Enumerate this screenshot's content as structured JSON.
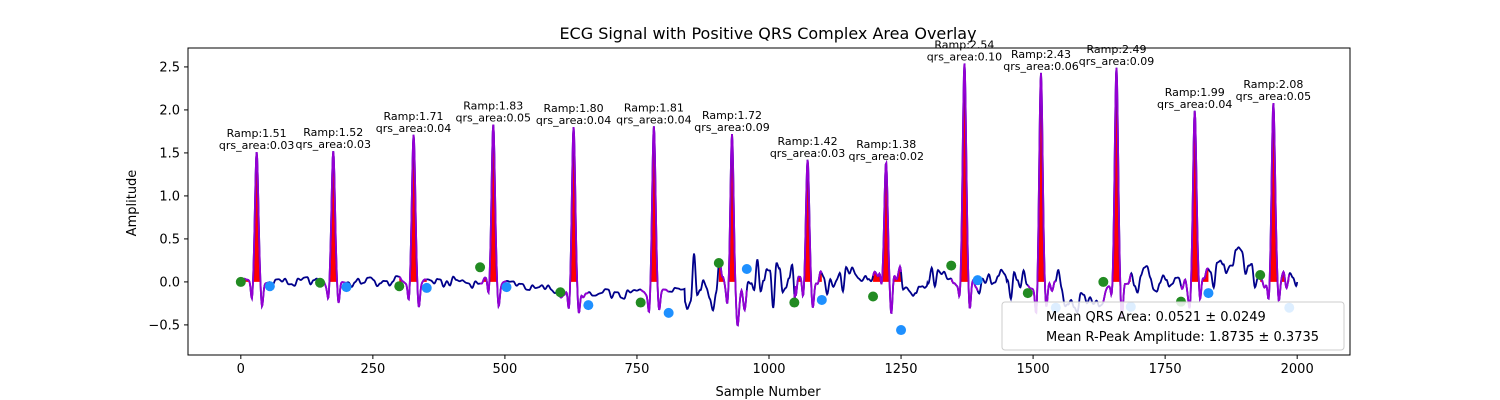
{
  "chart_data": {
    "type": "line",
    "title": "ECG Signal with Positive QRS Complex Area Overlay",
    "xlabel": "Sample Number",
    "ylabel": "Amplitude",
    "xlim": [
      -100,
      2100
    ],
    "ylim": [
      -0.85,
      2.72
    ],
    "xticks": [
      0,
      250,
      500,
      750,
      1000,
      1250,
      1500,
      1750,
      2000
    ],
    "yticks": [
      -0.5,
      0.0,
      0.5,
      1.0,
      1.5,
      2.0,
      2.5
    ],
    "colors": {
      "signal": "#00008b",
      "qrs_segment": "#9400d3",
      "qrs_area": "#ff0000",
      "onset_marker": "#228b22",
      "offset_marker": "#1e90ff"
    },
    "beats": [
      {
        "r_sample": 30,
        "r_amp": 1.51,
        "area": 0.03,
        "onset": [
          0,
          0.0
        ],
        "offset": [
          55,
          -0.05
        ]
      },
      {
        "r_sample": 175,
        "r_amp": 1.52,
        "area": 0.03,
        "onset": [
          150,
          -0.01
        ],
        "offset": [
          200,
          -0.06
        ]
      },
      {
        "r_sample": 327,
        "r_amp": 1.71,
        "area": 0.04,
        "onset": [
          300,
          -0.05
        ],
        "offset": [
          352,
          -0.07
        ]
      },
      {
        "r_sample": 478,
        "r_amp": 1.83,
        "area": 0.05,
        "onset": [
          453,
          0.17
        ],
        "offset": [
          503,
          -0.06
        ]
      },
      {
        "r_sample": 630,
        "r_amp": 1.8,
        "area": 0.04,
        "onset": [
          605,
          -0.12
        ],
        "offset": [
          658,
          -0.27
        ]
      },
      {
        "r_sample": 782,
        "r_amp": 1.81,
        "area": 0.04,
        "onset": [
          757,
          -0.24
        ],
        "offset": [
          810,
          -0.36
        ]
      },
      {
        "r_sample": 930,
        "r_amp": 1.72,
        "area": 0.09,
        "onset": [
          905,
          0.22
        ],
        "offset": [
          958,
          0.15
        ]
      },
      {
        "r_sample": 1073,
        "r_amp": 1.42,
        "area": 0.03,
        "onset": [
          1048,
          -0.24
        ],
        "offset": [
          1100,
          -0.21
        ]
      },
      {
        "r_sample": 1222,
        "r_amp": 1.38,
        "area": 0.02,
        "onset": [
          1197,
          -0.17
        ],
        "offset": [
          1250,
          -0.56
        ]
      },
      {
        "r_sample": 1370,
        "r_amp": 2.54,
        "area": 0.1,
        "onset": [
          1345,
          0.19
        ],
        "offset": [
          1395,
          0.02
        ]
      },
      {
        "r_sample": 1515,
        "r_amp": 2.43,
        "area": 0.06,
        "onset": [
          1490,
          -0.13
        ],
        "offset": [
          1543,
          -0.3
        ]
      },
      {
        "r_sample": 1658,
        "r_amp": 2.49,
        "area": 0.09,
        "onset": [
          1633,
          0.0
        ],
        "offset": [
          1685,
          -0.29
        ]
      },
      {
        "r_sample": 1806,
        "r_amp": 1.99,
        "area": 0.04,
        "onset": [
          1780,
          -0.23
        ],
        "offset": [
          1832,
          -0.13
        ]
      },
      {
        "r_sample": 1955,
        "r_amp": 2.08,
        "area": 0.05,
        "onset": [
          1930,
          0.08
        ],
        "offset": [
          1985,
          -0.3
        ]
      }
    ],
    "ann_format": {
      "ramp_prefix": "Ramp:",
      "area_prefix": "qrs_area:"
    },
    "legend": {
      "position": "lower right",
      "entries": [
        "Mean QRS Area: 0.0521 ± 0.0249",
        "Mean R-Peak Amplitude: 1.8735 ± 0.3735"
      ]
    },
    "grid": false
  }
}
